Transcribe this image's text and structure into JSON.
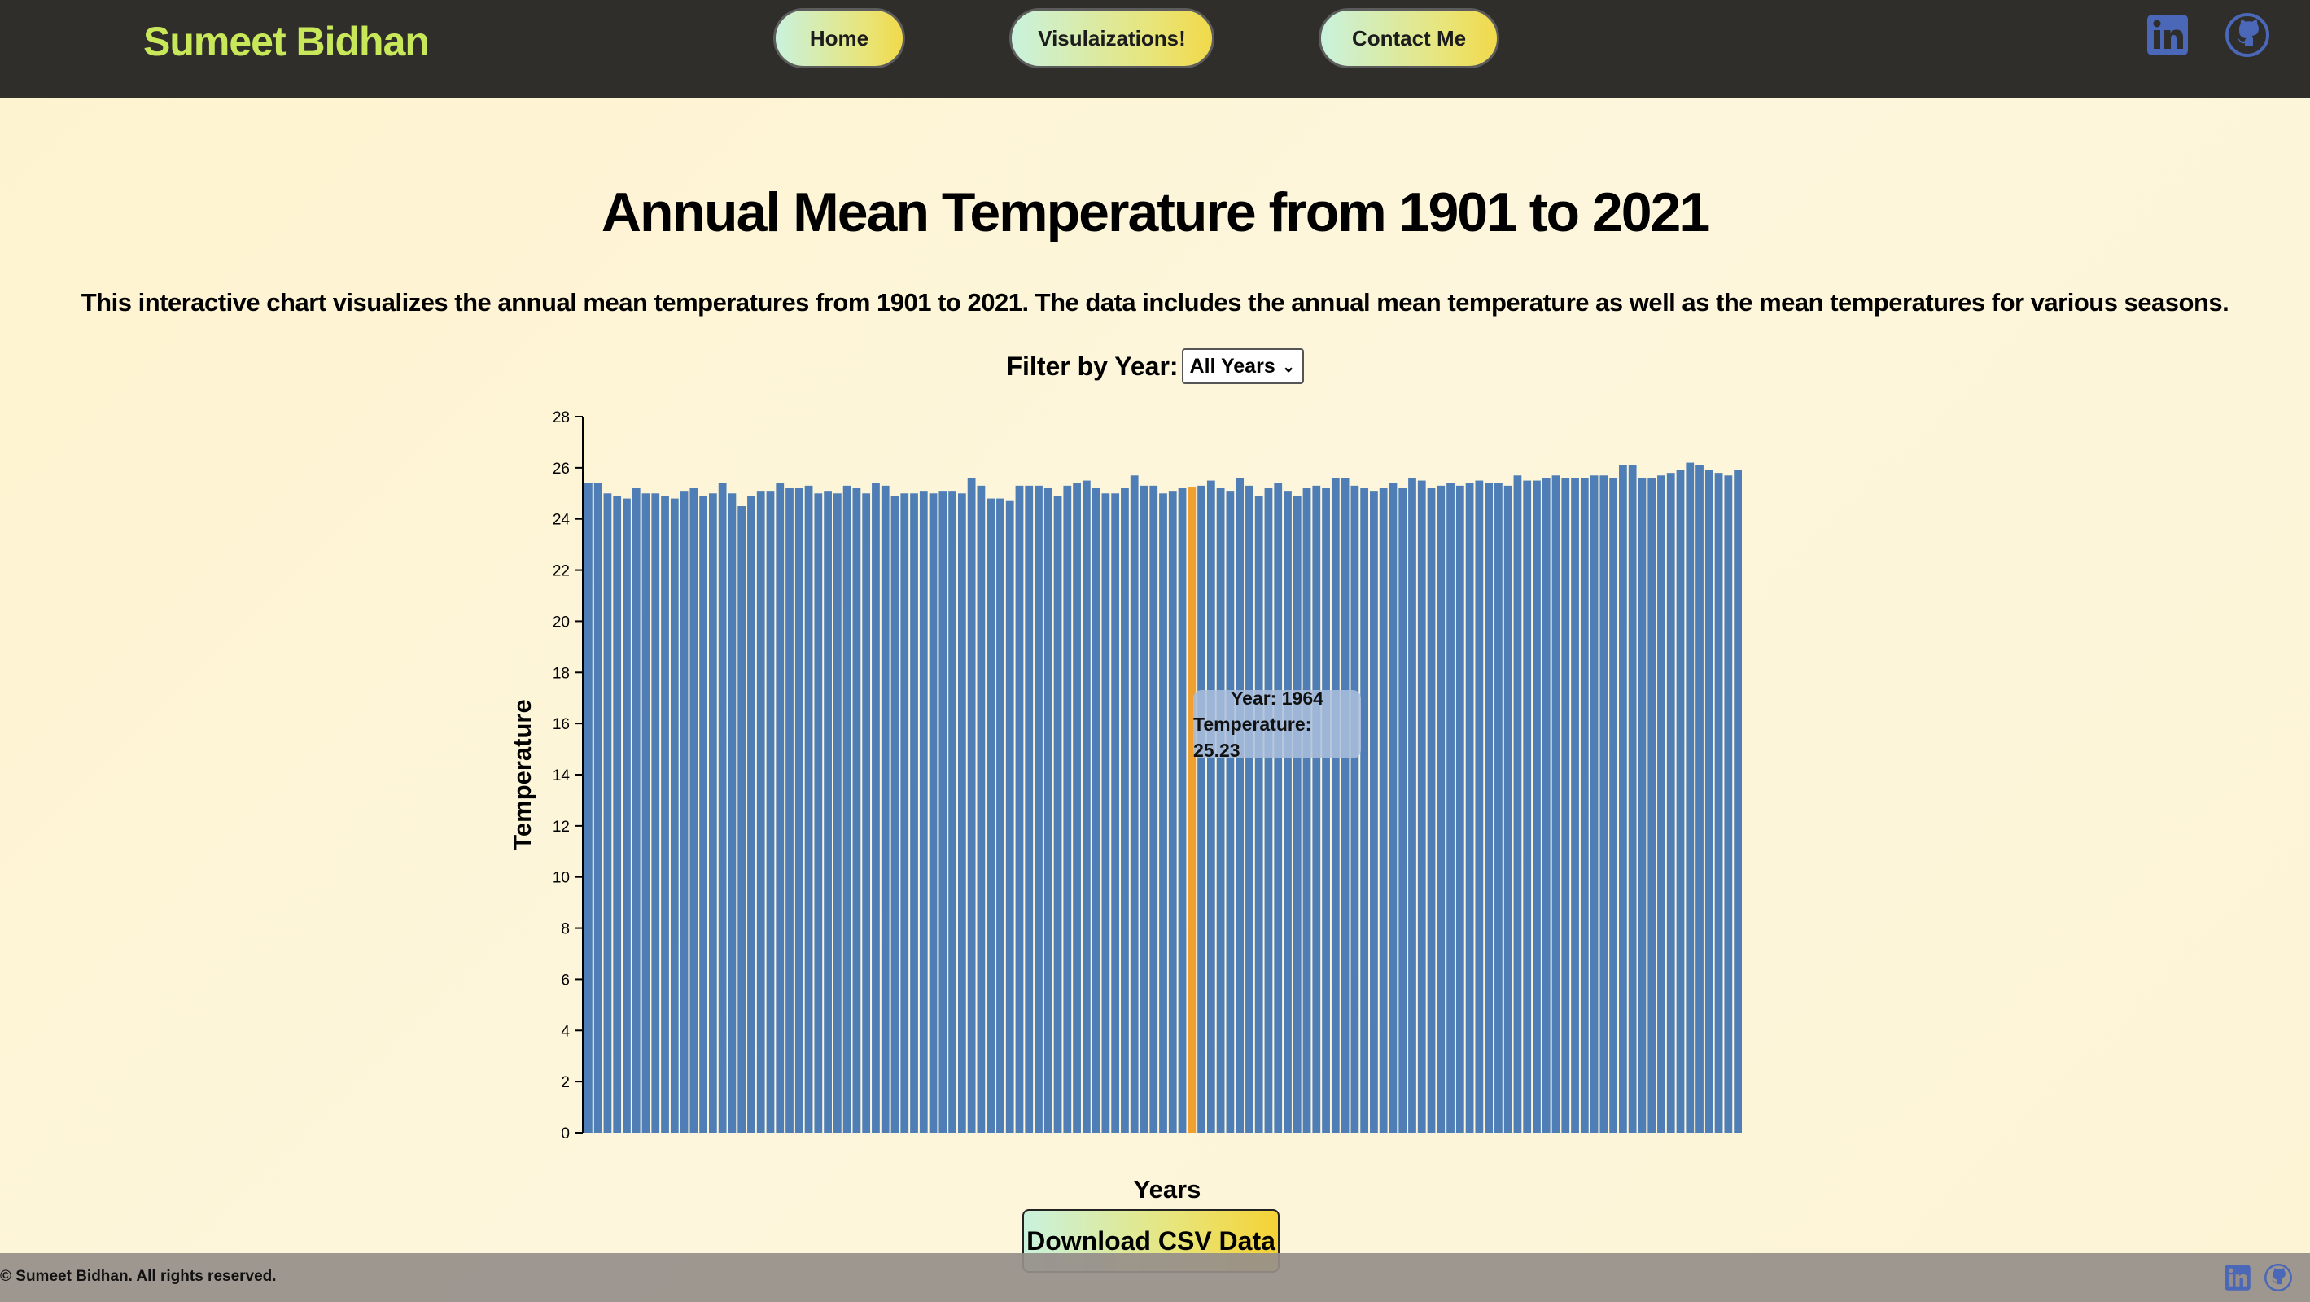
{
  "nav": {
    "brand": "Sumeet Bidhan",
    "links": [
      "Home",
      "Visulaizations!",
      "Contact Me"
    ],
    "social_icons": [
      "linkedin-icon",
      "github-icon"
    ]
  },
  "page": {
    "title": "Annual Mean Temperature from 1901 to 2021",
    "description": "This interactive chart visualizes the annual mean temperatures from 1901 to 2021. The data includes the annual mean temperature as well as the mean temperatures for various seasons.",
    "filter_label": "Filter by Year:",
    "filter_value": "All Years",
    "download_label": "Download CSV Data"
  },
  "tooltip": {
    "line1": "Year: 1964",
    "line2": "Temperature: 25.23"
  },
  "footer": {
    "text": "© Sumeet Bidhan. All rights reserved."
  },
  "colors": {
    "bar": "#4f7eb6",
    "highlight": "#f0a030",
    "brand": "#c8e85a",
    "social": "#4a67b8"
  },
  "chart_data": {
    "type": "bar",
    "title": "",
    "xlabel": "Years",
    "ylabel": "Temperature",
    "ylim": [
      0,
      28
    ],
    "yticks": [
      0,
      2,
      4,
      6,
      8,
      10,
      12,
      14,
      16,
      18,
      20,
      22,
      24,
      26,
      28
    ],
    "x_start": 1901,
    "x_end": 2021,
    "highlight_year": 1964,
    "values": [
      25.4,
      25.4,
      25.0,
      24.9,
      24.8,
      25.2,
      25.0,
      25.0,
      24.9,
      24.8,
      25.1,
      25.2,
      24.9,
      25.0,
      25.4,
      25.0,
      24.5,
      24.9,
      25.1,
      25.1,
      25.4,
      25.2,
      25.2,
      25.3,
      25.0,
      25.1,
      25.0,
      25.3,
      25.2,
      25.0,
      25.4,
      25.3,
      24.9,
      25.0,
      25.0,
      25.1,
      25.0,
      25.1,
      25.1,
      25.0,
      25.6,
      25.3,
      24.8,
      24.8,
      24.7,
      25.3,
      25.3,
      25.3,
      25.2,
      24.9,
      25.3,
      25.4,
      25.5,
      25.2,
      25.0,
      25.0,
      25.2,
      25.7,
      25.3,
      25.3,
      25.0,
      25.1,
      25.2,
      25.23,
      25.3,
      25.5,
      25.2,
      25.1,
      25.6,
      25.3,
      24.9,
      25.2,
      25.4,
      25.1,
      24.9,
      25.2,
      25.3,
      25.2,
      25.6,
      25.6,
      25.3,
      25.2,
      25.1,
      25.2,
      25.4,
      25.2,
      25.6,
      25.5,
      25.2,
      25.3,
      25.4,
      25.3,
      25.4,
      25.5,
      25.4,
      25.4,
      25.3,
      25.7,
      25.5,
      25.5,
      25.6,
      25.7,
      25.6,
      25.6,
      25.6,
      25.7,
      25.7,
      25.6,
      26.1,
      26.1,
      25.6,
      25.6,
      25.7,
      25.8,
      25.9,
      26.2,
      26.1,
      25.9,
      25.8,
      25.7,
      25.9
    ]
  }
}
